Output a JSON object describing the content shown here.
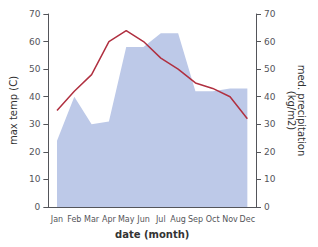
{
  "chart_data": {
    "type": "line",
    "categories": [
      "Jan",
      "Feb",
      "Mar",
      "Apr",
      "May",
      "Jun",
      "Jul",
      "Aug",
      "Sep",
      "Oct",
      "Nov",
      "Dec"
    ],
    "series": [
      {
        "type": "area",
        "axis": "y2",
        "color": "#bdc9e8",
        "values": [
          24,
          40,
          30,
          31,
          58,
          58,
          63,
          63,
          42,
          42,
          43,
          43
        ]
      },
      {
        "type": "line",
        "color": "#b03040",
        "values": [
          35,
          42,
          48,
          60,
          64,
          60,
          54,
          50,
          45,
          43,
          40,
          32
        ]
      }
    ],
    "xlabel": "date (month)",
    "ylabel": "max temp (C)",
    "y2label": "med. precipitation\n(kg/m2)",
    "ylim": [
      0,
      70
    ],
    "yticks": [
      0,
      10,
      20,
      30,
      40,
      50,
      60,
      70
    ],
    "y2lim": [
      0,
      70
    ],
    "y2ticks": [
      0,
      10,
      20,
      30,
      40,
      50,
      60,
      70
    ],
    "grid": false
  }
}
